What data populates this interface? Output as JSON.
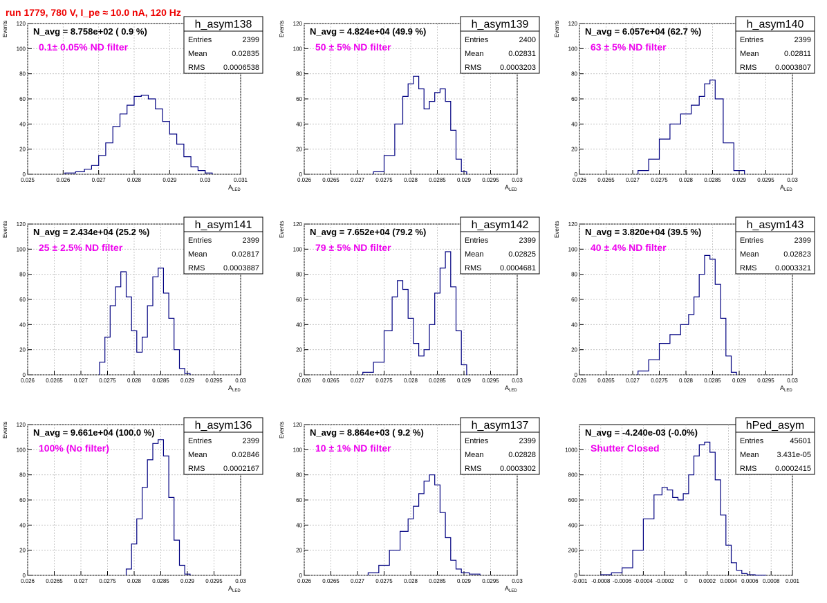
{
  "page": {
    "run_title": "run 1779,   780 V, I_pe ≈ 10.0 nA, 120 Hz",
    "colors": {
      "run_title": "#ee0000",
      "filter_label": "#ee00ee",
      "histogram": "#000080",
      "grid": "#bbbbbb"
    }
  },
  "chart_data": [
    {
      "type": "histogram",
      "name": "h_asym138",
      "navg": "N_avg = 8.758e+02 ( 0.9 %)",
      "label": "0.1± 0.05% ND filter",
      "stats": {
        "entries_label": "Entries",
        "entries": "2399",
        "mean_label": "Mean",
        "mean": "0.02835",
        "rms_label": "RMS",
        "rms": "0.0006538"
      },
      "ylabel": "Events",
      "xlabel": "A",
      "xlabel_sub": "LED",
      "xlim": [
        0.025,
        0.031
      ],
      "ylim": [
        0,
        120
      ],
      "xticks": [
        "0.025",
        "0.026",
        "0.027",
        "0.028",
        "0.029",
        "0.03",
        "0.031"
      ],
      "yticks": [
        "0",
        "20",
        "40",
        "60",
        "80",
        "100",
        "120"
      ],
      "x": [
        0.0262,
        0.0265,
        0.0267,
        0.0269,
        0.0271,
        0.0273,
        0.0275,
        0.0277,
        0.0279,
        0.0281,
        0.0283,
        0.0285,
        0.0287,
        0.0289,
        0.0291,
        0.0293,
        0.0295,
        0.0297,
        0.0299,
        0.0301
      ],
      "values": [
        1,
        2,
        4,
        7,
        15,
        25,
        38,
        48,
        55,
        62,
        63,
        60,
        52,
        42,
        32,
        24,
        14,
        6,
        3,
        1
      ]
    },
    {
      "type": "histogram",
      "name": "h_asym139",
      "navg": "N_avg = 4.824e+04 (49.9 %)",
      "label": "50 ± 5% ND filter",
      "stats": {
        "entries_label": "Entries",
        "entries": "2400",
        "mean_label": "Mean",
        "mean": "0.02831",
        "rms_label": "RMS",
        "rms": "0.0003203"
      },
      "ylabel": "Events",
      "xlabel": "A",
      "xlabel_sub": "LED",
      "xlim": [
        0.026,
        0.03
      ],
      "ylim": [
        0,
        120
      ],
      "xticks": [
        "0.026",
        "0.0265",
        "0.027",
        "0.0275",
        "0.028",
        "0.0285",
        "0.029",
        "0.0295",
        "0.03"
      ],
      "yticks": [
        "0",
        "20",
        "40",
        "60",
        "80",
        "100",
        "120"
      ],
      "x": [
        0.0274,
        0.0276,
        0.0278,
        0.0279,
        0.028,
        0.0281,
        0.0282,
        0.0283,
        0.0284,
        0.0285,
        0.0286,
        0.0287,
        0.0288,
        0.0289,
        0.029
      ],
      "values": [
        2,
        15,
        40,
        62,
        72,
        78,
        68,
        52,
        58,
        65,
        68,
        58,
        35,
        12,
        2
      ]
    },
    {
      "type": "histogram",
      "name": "h_asym140",
      "navg": "N_avg = 6.057e+04 (62.7 %)",
      "label": "63 ± 5% ND filter",
      "stats": {
        "entries_label": "Entries",
        "entries": "2399",
        "mean_label": "Mean",
        "mean": "0.02811",
        "rms_label": "RMS",
        "rms": "0.0003807"
      },
      "ylabel": "Events",
      "xlabel": "A",
      "xlabel_sub": "LED",
      "xlim": [
        0.026,
        0.03
      ],
      "ylim": [
        0,
        120
      ],
      "xticks": [
        "0.026",
        "0.0265",
        "0.027",
        "0.0275",
        "0.028",
        "0.0285",
        "0.029",
        "0.0295",
        "0.03"
      ],
      "yticks": [
        "0",
        "20",
        "40",
        "60",
        "80",
        "100",
        "120"
      ],
      "x": [
        0.0272,
        0.0274,
        0.0276,
        0.0278,
        0.028,
        0.0282,
        0.0283,
        0.0284,
        0.0285,
        0.0286,
        0.0288,
        0.029
      ],
      "values": [
        3,
        12,
        28,
        40,
        48,
        55,
        62,
        72,
        75,
        60,
        25,
        3
      ]
    },
    {
      "type": "histogram",
      "name": "h_asym141",
      "navg": "N_avg = 2.434e+04 (25.2 %)",
      "label": "25 ± 2.5% ND filter",
      "stats": {
        "entries_label": "Entries",
        "entries": "2399",
        "mean_label": "Mean",
        "mean": "0.02817",
        "rms_label": "RMS",
        "rms": "0.0003887"
      },
      "ylabel": "Events",
      "xlabel": "A",
      "xlabel_sub": "LED",
      "xlim": [
        0.026,
        0.03
      ],
      "ylim": [
        0,
        120
      ],
      "xticks": [
        "0.026",
        "0.0265",
        "0.027",
        "0.0275",
        "0.028",
        "0.0285",
        "0.029",
        "0.0295",
        "0.03"
      ],
      "yticks": [
        "0",
        "20",
        "40",
        "60",
        "80",
        "100",
        "120"
      ],
      "x": [
        0.0274,
        0.0275,
        0.0276,
        0.0277,
        0.0278,
        0.0279,
        0.028,
        0.0281,
        0.0282,
        0.0283,
        0.0284,
        0.0285,
        0.0286,
        0.0287,
        0.0288,
        0.0289,
        0.029
      ],
      "values": [
        10,
        30,
        55,
        70,
        82,
        62,
        35,
        18,
        30,
        55,
        78,
        85,
        65,
        45,
        20,
        5,
        1
      ]
    },
    {
      "type": "histogram",
      "name": "h_asym142",
      "navg": "N_avg = 7.652e+04 (79.2 %)",
      "label": "79 ± 5% ND filter",
      "stats": {
        "entries_label": "Entries",
        "entries": "2399",
        "mean_label": "Mean",
        "mean": "0.02825",
        "rms_label": "RMS",
        "rms": "0.0004681"
      },
      "ylabel": "Events",
      "xlabel": "A",
      "xlabel_sub": "LED",
      "xlim": [
        0.026,
        0.03
      ],
      "ylim": [
        0,
        120
      ],
      "xticks": [
        "0.026",
        "0.0265",
        "0.027",
        "0.0275",
        "0.028",
        "0.0285",
        "0.029",
        "0.0295",
        "0.03"
      ],
      "yticks": [
        "0",
        "20",
        "40",
        "60",
        "80",
        "100",
        "120"
      ],
      "x": [
        0.0272,
        0.0274,
        0.0276,
        0.0277,
        0.0278,
        0.0279,
        0.028,
        0.0281,
        0.0282,
        0.0283,
        0.0284,
        0.0285,
        0.0286,
        0.0287,
        0.0288,
        0.0289,
        0.029
      ],
      "values": [
        2,
        10,
        35,
        62,
        75,
        68,
        45,
        25,
        15,
        20,
        40,
        65,
        85,
        98,
        70,
        35,
        8
      ]
    },
    {
      "type": "histogram",
      "name": "h_asym143",
      "navg": "N_avg = 3.820e+04 (39.5 %)",
      "label": "40 ± 4% ND filter",
      "stats": {
        "entries_label": "Entries",
        "entries": "2399",
        "mean_label": "Mean",
        "mean": "0.02823",
        "rms_label": "RMS",
        "rms": "0.0003321"
      },
      "ylabel": "Events",
      "xlabel": "A",
      "xlabel_sub": "LED",
      "xlim": [
        0.026,
        0.03
      ],
      "ylim": [
        0,
        120
      ],
      "xticks": [
        "0.026",
        "0.0265",
        "0.027",
        "0.0275",
        "0.028",
        "0.0285",
        "0.029",
        "0.0295",
        "0.03"
      ],
      "yticks": [
        "0",
        "20",
        "40",
        "60",
        "80",
        "100",
        "120"
      ],
      "x": [
        0.0272,
        0.0274,
        0.0276,
        0.0278,
        0.028,
        0.0281,
        0.0282,
        0.0283,
        0.0284,
        0.0285,
        0.0286,
        0.0287,
        0.0288,
        0.0289
      ],
      "values": [
        3,
        12,
        25,
        32,
        40,
        48,
        62,
        80,
        95,
        92,
        72,
        45,
        15,
        2
      ]
    },
    {
      "type": "histogram",
      "name": "h_asym136",
      "navg": "N_avg = 9.661e+04 (100.0 %)",
      "label": "100% (No filter)",
      "stats": {
        "entries_label": "Entries",
        "entries": "2399",
        "mean_label": "Mean",
        "mean": "0.02846",
        "rms_label": "RMS",
        "rms": "0.0002167"
      },
      "ylabel": "Events",
      "xlabel": "A",
      "xlabel_sub": "LED",
      "xlim": [
        0.026,
        0.03
      ],
      "ylim": [
        0,
        120
      ],
      "xticks": [
        "0.026",
        "0.0265",
        "0.027",
        "0.0275",
        "0.028",
        "0.0285",
        "0.029",
        "0.0295",
        "0.03"
      ],
      "yticks": [
        "0",
        "20",
        "40",
        "60",
        "80",
        "100",
        "120"
      ],
      "x": [
        0.0279,
        0.028,
        0.0281,
        0.0282,
        0.0283,
        0.0284,
        0.0285,
        0.0286,
        0.0287,
        0.0288,
        0.0289,
        0.029
      ],
      "values": [
        5,
        25,
        45,
        70,
        92,
        105,
        108,
        95,
        62,
        28,
        8,
        1
      ]
    },
    {
      "type": "histogram",
      "name": "h_asym137",
      "navg": "N_avg = 8.864e+03 ( 9.2 %)",
      "label": "10 ± 1% ND filter",
      "stats": {
        "entries_label": "Entries",
        "entries": "2399",
        "mean_label": "Mean",
        "mean": "0.02828",
        "rms_label": "RMS",
        "rms": "0.0003302"
      },
      "ylabel": "Events",
      "xlabel": "A",
      "xlabel_sub": "LED",
      "xlim": [
        0.026,
        0.03
      ],
      "ylim": [
        0,
        120
      ],
      "xticks": [
        "0.026",
        "0.0265",
        "0.027",
        "0.0275",
        "0.028",
        "0.0285",
        "0.029",
        "0.0295",
        "0.03"
      ],
      "yticks": [
        "0",
        "20",
        "40",
        "60",
        "80",
        "100",
        "120"
      ],
      "x": [
        0.0273,
        0.0275,
        0.0277,
        0.0279,
        0.028,
        0.0281,
        0.0282,
        0.0283,
        0.0284,
        0.0285,
        0.0286,
        0.0287,
        0.0288,
        0.0289,
        0.029,
        0.0292
      ],
      "values": [
        2,
        8,
        20,
        35,
        45,
        55,
        65,
        75,
        80,
        72,
        50,
        30,
        12,
        5,
        2,
        1
      ]
    },
    {
      "type": "histogram",
      "name": "hPed_asym",
      "navg": "N_avg = -4.240e-03 (-0.0%)",
      "label": "Shutter Closed",
      "stats": {
        "entries_label": "Entries",
        "entries": "45601",
        "mean_label": "Mean",
        "mean": "3.431e-05",
        "rms_label": "RMS",
        "rms": "0.0002415"
      },
      "ylabel": "",
      "xlabel": "",
      "xlabel_sub": "",
      "xlim": [
        -0.001,
        0.001
      ],
      "ylim": [
        0,
        1200
      ],
      "xticks": [
        "-0.001",
        "-0.0008",
        "-0.0006",
        "-0.0004",
        "-0.0002",
        "0",
        "0.0002",
        "0.0004",
        "0.0006",
        "0.0008",
        "0.001"
      ],
      "yticks": [
        "0",
        "200",
        "400",
        "600",
        "800",
        "1000"
      ],
      "x": [
        -0.00075,
        -0.00065,
        -0.00055,
        -0.00045,
        -0.00035,
        -0.00025,
        -0.0002,
        -0.00015,
        -0.0001,
        -5e-05,
        0.0,
        5e-05,
        0.0001,
        0.00015,
        0.0002,
        0.00025,
        0.0003,
        0.00035,
        0.0004,
        0.00045,
        0.0005,
        0.00055,
        0.0006,
        0.0007
      ],
      "values": [
        5,
        20,
        60,
        200,
        450,
        640,
        700,
        680,
        620,
        600,
        650,
        800,
        950,
        1040,
        1060,
        980,
        760,
        480,
        240,
        100,
        40,
        15,
        5,
        1
      ]
    }
  ]
}
